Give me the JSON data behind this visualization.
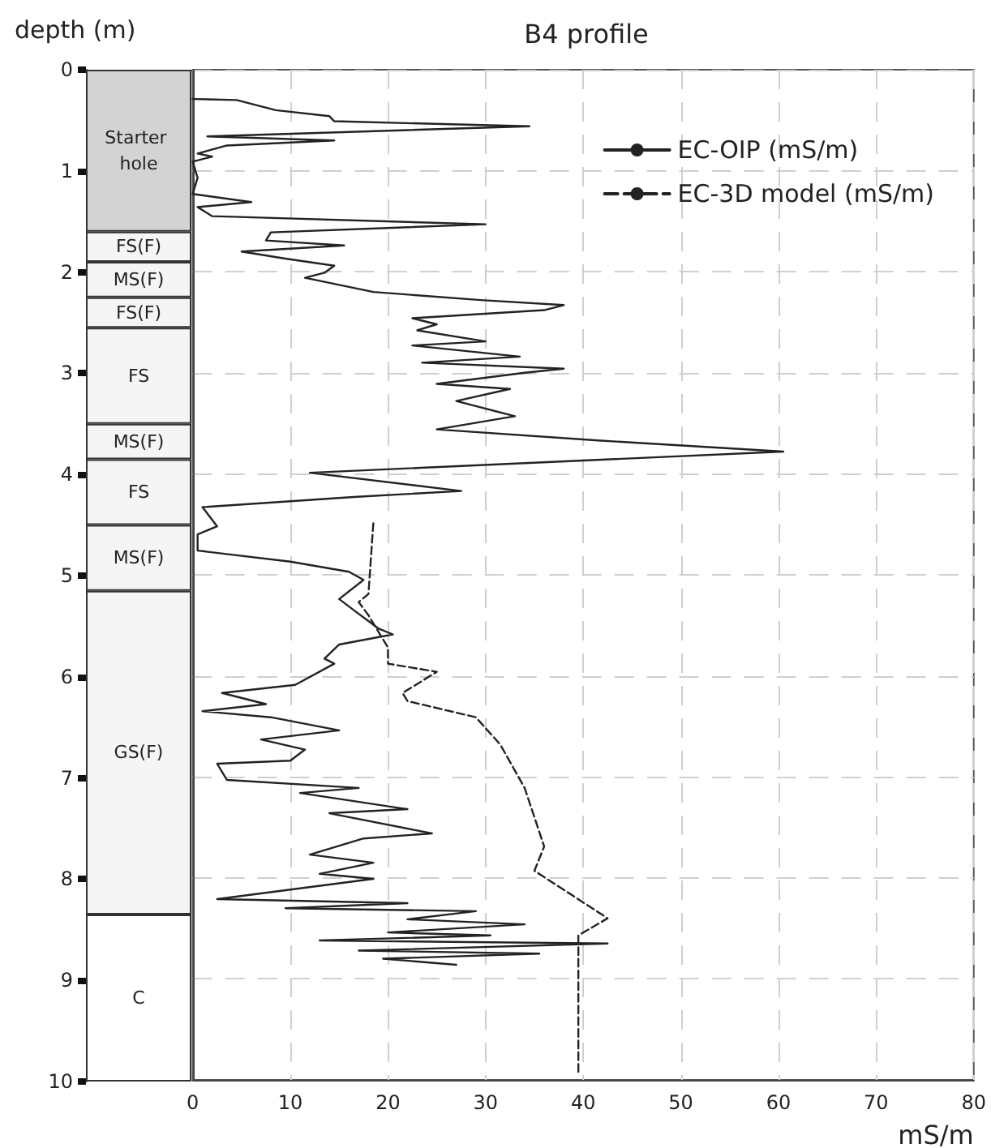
{
  "chart_data": [
    {
      "type": "bar",
      "stacked": true,
      "ylabel": "depth (m)",
      "categories": [
        null
      ],
      "ylim": [
        10,
        0
      ],
      "yticks": [
        0,
        1,
        2,
        3,
        4,
        5,
        6,
        7,
        8,
        9,
        10
      ],
      "tick_labels": "y",
      "series": [
        {
          "name": "Starter hole",
          "color": "#d3d3d3",
          "values": [
            1.6
          ]
        },
        {
          "name": "FS(F)",
          "color": "#f5f5f5",
          "values": [
            0.3
          ]
        },
        {
          "name": "MS(F)",
          "color": "#f5f5f5",
          "values": [
            0.35
          ]
        },
        {
          "name": "FS(F)",
          "color": "#f5f5f5",
          "values": [
            0.3
          ]
        },
        {
          "name": "FS",
          "color": "#f5f5f5",
          "values": [
            0.95
          ]
        },
        {
          "name": "MS(F)",
          "color": "#f5f5f5",
          "values": [
            0.35
          ]
        },
        {
          "name": "FS",
          "color": "#f5f5f5",
          "values": [
            0.65
          ]
        },
        {
          "name": "MS(F)",
          "color": "#f5f5f5",
          "values": [
            0.65
          ]
        },
        {
          "name": "GS(F)",
          "color": "#f5f5f5",
          "values": [
            3.2
          ]
        },
        {
          "name": "C",
          "color": "#ffffff",
          "values": [
            1.65
          ]
        }
      ]
    },
    {
      "type": "line",
      "title": "B4 profile",
      "xlabel": "mS/m",
      "xlim": [
        0,
        80
      ],
      "xticks": [
        0,
        10,
        20,
        30,
        40,
        50,
        60,
        70,
        80
      ],
      "ylim": [
        10,
        0
      ],
      "yticks": [
        0,
        1,
        2,
        3,
        4,
        5,
        6,
        7,
        8,
        9,
        10
      ],
      "tick_labels": "x",
      "grid": true,
      "legend": "top right",
      "series": [
        {
          "name": "EC-OIP (mS/m)",
          "color": "#222222",
          "line_style": "solid",
          "x": [
            0,
            4.5,
            8.5,
            14,
            14.5,
            34.5,
            1.5,
            14.5,
            3.5,
            0.5,
            2,
            0,
            0.5,
            0,
            6,
            0.5,
            2,
            30,
            8,
            7.5,
            15.5,
            5,
            9.5,
            14.5,
            13.5,
            11.5,
            18.5,
            29.5,
            38,
            36,
            22.5,
            25,
            23,
            30,
            22.5,
            33.5,
            23.5,
            38,
            34,
            25,
            32.5,
            27,
            33,
            25,
            41.5,
            60.5,
            12,
            27.5,
            16.5,
            1,
            2.5,
            0.5,
            0.5,
            0.5,
            10,
            16,
            17.5,
            15,
            16.5,
            19,
            20.5,
            15,
            13.5,
            14.5,
            10.5,
            3,
            7.5,
            1,
            8,
            15,
            7,
            11.5,
            10,
            2.5,
            3.5,
            17,
            11,
            22,
            14,
            24.5,
            17.5,
            12,
            18.5,
            13,
            18.5,
            2.5,
            22,
            9.5,
            29,
            22,
            34,
            20,
            30.5,
            13,
            42.5,
            17,
            35.5,
            19.5,
            27
          ],
          "values": [
            0.29,
            0.3,
            0.4,
            0.46,
            0.51,
            0.56,
            0.66,
            0.7,
            0.75,
            0.83,
            0.86,
            0.91,
            1.07,
            1.23,
            1.31,
            1.36,
            1.45,
            1.53,
            1.61,
            1.69,
            1.74,
            1.8,
            1.87,
            1.94,
            2.01,
            2.06,
            2.2,
            2.28,
            2.33,
            2.38,
            2.46,
            2.52,
            2.58,
            2.69,
            2.73,
            2.84,
            2.9,
            2.96,
            3.0,
            3.11,
            3.16,
            3.28,
            3.43,
            3.56,
            3.67,
            3.78,
            3.99,
            4.17,
            4.23,
            4.33,
            4.52,
            4.6,
            4.73,
            4.76,
            4.87,
            4.97,
            5.05,
            5.24,
            5.35,
            5.53,
            5.59,
            5.69,
            5.83,
            5.88,
            6.09,
            6.17,
            6.28,
            6.35,
            6.41,
            6.54,
            6.63,
            6.73,
            6.84,
            6.87,
            7.03,
            7.11,
            7.16,
            7.32,
            7.36,
            7.56,
            7.61,
            7.77,
            7.85,
            7.96,
            8.01,
            8.21,
            8.25,
            8.3,
            8.33,
            8.41,
            8.46,
            8.54,
            8.57,
            8.62,
            8.65,
            8.72,
            8.75,
            8.8,
            8.86
          ]
        },
        {
          "name": "EC-3D model (mS/m)",
          "color": "#222222",
          "line_style": "dashed",
          "x": [
            18.5,
            18,
            17,
            18,
            20,
            20,
            25,
            21.5,
            22,
            29,
            31.5,
            34,
            36,
            35,
            42.5,
            39.5,
            39.5,
            39.5
          ],
          "values": [
            4.49,
            5.19,
            5.27,
            5.4,
            5.72,
            5.88,
            5.96,
            6.17,
            6.25,
            6.41,
            6.68,
            7.11,
            7.69,
            7.93,
            8.4,
            8.57,
            8.65,
            9.94
          ]
        }
      ]
    }
  ]
}
